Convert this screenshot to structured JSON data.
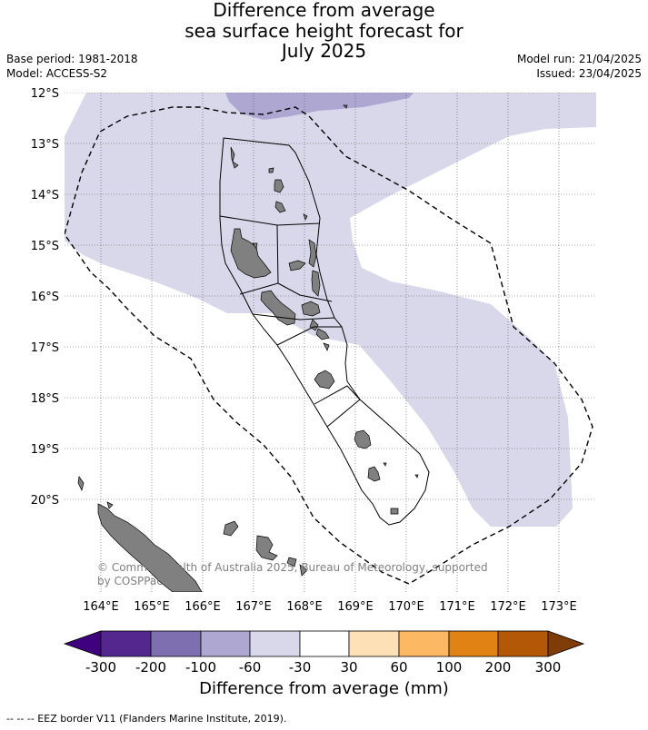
{
  "title": {
    "line1": "Difference from average",
    "line2": "sea surface height forecast for",
    "line3": "July 2025"
  },
  "meta": {
    "base_period": "Base period: 1981-2018",
    "model": "Model: ACCESS-S2",
    "model_run": "Model run: 21/04/2025",
    "issued": "Issued: 23/04/2025"
  },
  "map": {
    "lat_labels": [
      "12°S",
      "13°S",
      "14°S",
      "15°S",
      "16°S",
      "17°S",
      "18°S",
      "19°S",
      "20°S"
    ],
    "lon_labels": [
      "164°E",
      "165°E",
      "166°E",
      "167°E",
      "168°E",
      "169°E",
      "170°E",
      "171°E",
      "172°E",
      "173°E"
    ],
    "copyright_line1": "© Commonwealth of Australia 2025, Bureau of Meteorology, supported",
    "copyright_line2": "by COSPPac",
    "colors": {
      "ocean": "#ffffff",
      "anomaly_minus_30_60": "#d8d8ea",
      "anomaly_minus_60_100": "#aea7d2",
      "land": "#808080",
      "grid": "#555555",
      "eez": "#000000"
    }
  },
  "colorbar": {
    "ticks": [
      "-300",
      "-200",
      "-100",
      "-60",
      "-30",
      "30",
      "60",
      "100",
      "200",
      "300"
    ],
    "colors": [
      "#3f007d",
      "#54278f",
      "#7e6fb0",
      "#aea7d2",
      "#d8d8ea",
      "#ffffff",
      "#fee0b6",
      "#fdb863",
      "#e08214",
      "#b35806",
      "#7f3b08"
    ],
    "label": "Difference from average (mm)"
  },
  "footnote": "--  --  -- EEZ border V11 (Flanders Marine Institute, 2019)."
}
